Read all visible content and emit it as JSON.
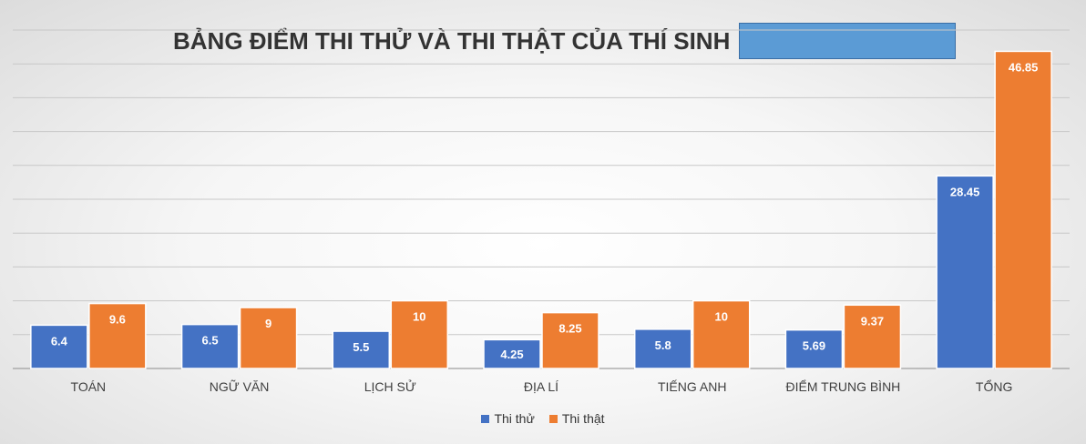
{
  "chart_data": {
    "type": "bar",
    "title": "BẢNG ĐIỂM THI THỬ VÀ THI THẬT CỦA THÍ SINH",
    "categories": [
      "TOÁN",
      "NGỮ VĂN",
      "LỊCH SỬ",
      "ĐỊA LÍ",
      "TIẾNG ANH",
      "ĐIỂM TRUNG BÌNH",
      "TỔNG"
    ],
    "series": [
      {
        "name": "Thi thử",
        "color": "#4472c4",
        "values": [
          6.4,
          6.5,
          5.5,
          4.25,
          5.8,
          5.69,
          28.45
        ],
        "labels": [
          "6.4",
          "6.5",
          "5.5",
          "4.25",
          "5.8",
          "5.69",
          "28.45"
        ]
      },
      {
        "name": "Thi thật",
        "color": "#ed7d31",
        "values": [
          9.6,
          9,
          10,
          8.25,
          10,
          9.37,
          46.85
        ],
        "labels": [
          "9.6",
          "9",
          "10",
          "8.25",
          "10",
          "9.37",
          "46.85"
        ]
      }
    ],
    "ylim": [
      0,
      50
    ],
    "grid": true,
    "axis_tick_labels": false,
    "legend_position": "bottom"
  }
}
